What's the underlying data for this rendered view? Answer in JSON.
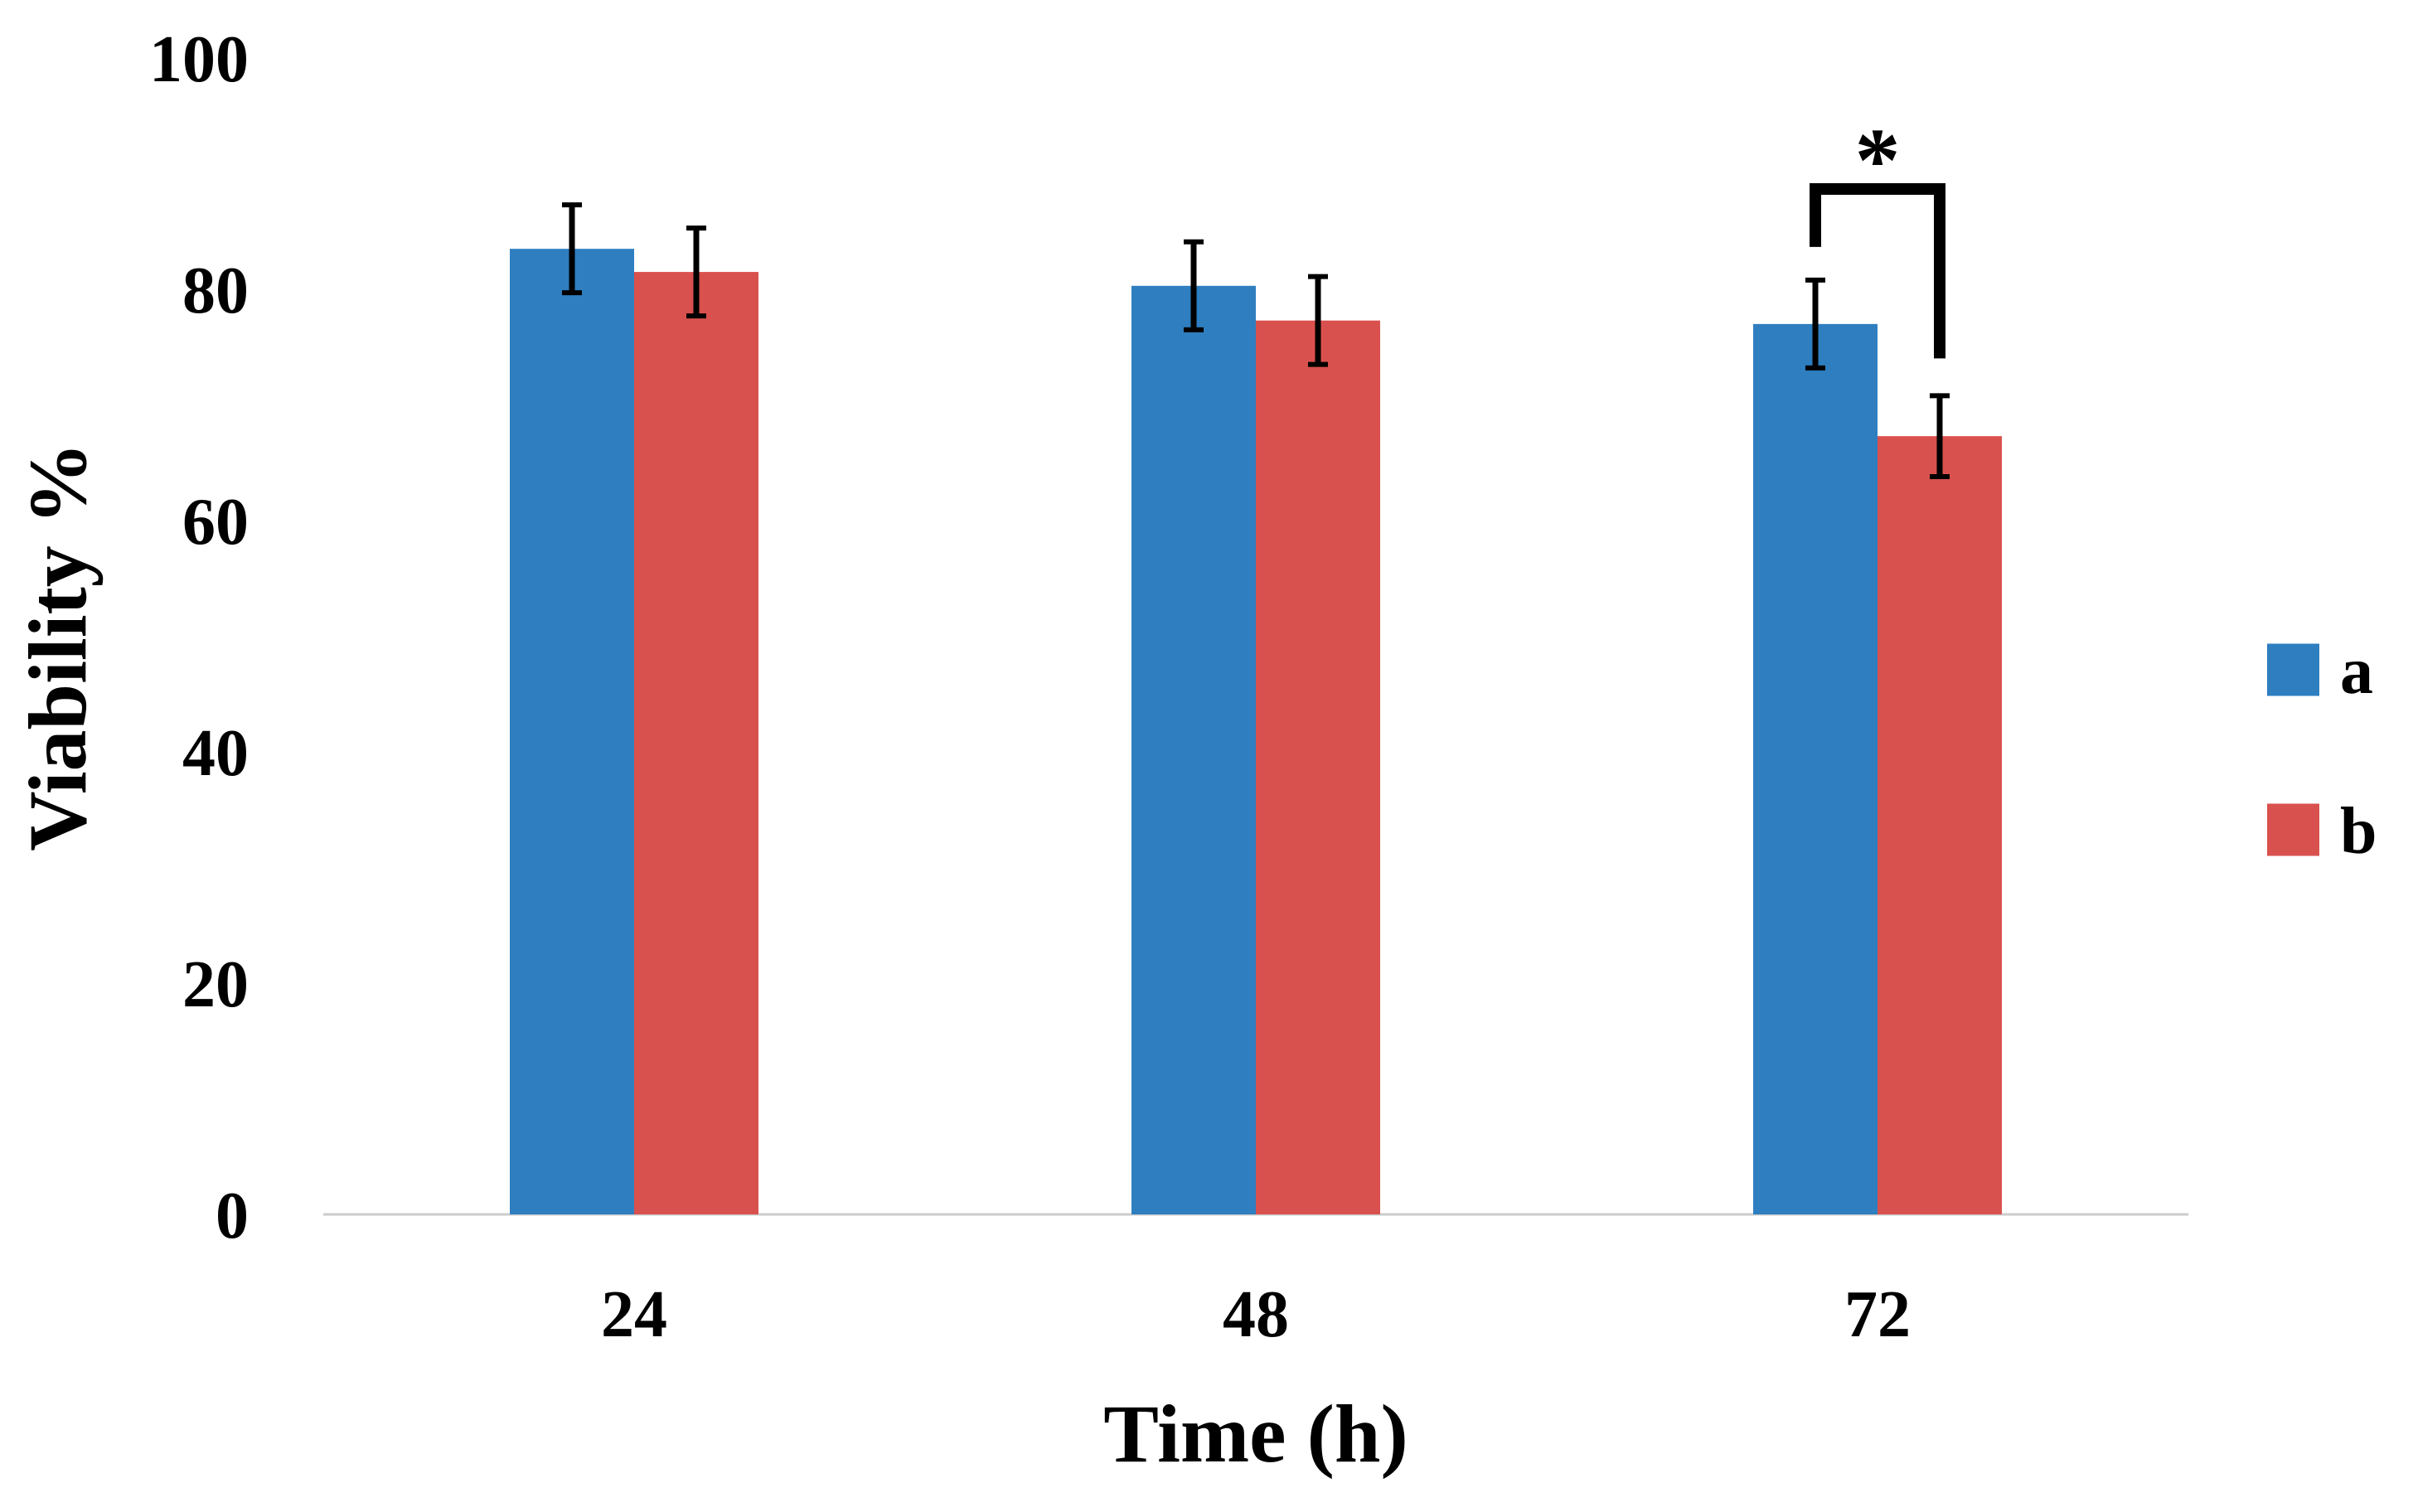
{
  "chart_data": {
    "type": "bar",
    "title": "",
    "xlabel": "Time (h)",
    "ylabel": "Viability %",
    "categories": [
      "24",
      "48",
      "72"
    ],
    "ylim": [
      0,
      100
    ],
    "yticks": [
      0,
      20,
      40,
      60,
      80,
      100
    ],
    "grid": false,
    "legend_position": "right",
    "series": [
      {
        "name": "a",
        "color": "#2E7EC0",
        "values": [
          83.5,
          80.3,
          77.0
        ],
        "errors": [
          3.8,
          3.8,
          3.8
        ]
      },
      {
        "name": "b",
        "color": "#D9514E",
        "values": [
          81.5,
          77.3,
          67.3
        ],
        "errors": [
          3.8,
          3.8,
          3.5
        ]
      }
    ],
    "annotations": [
      {
        "text": "*",
        "category": "72",
        "between": [
          "a",
          "b"
        ]
      }
    ]
  }
}
